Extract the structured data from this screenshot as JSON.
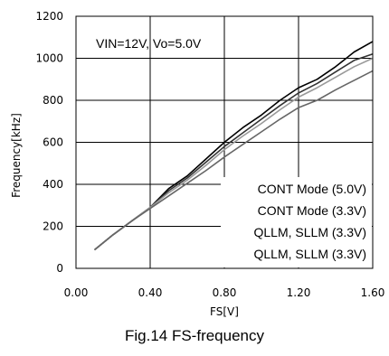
{
  "caption": "Fig.14 FS-frequency",
  "chart_data": {
    "type": "line",
    "xlabel": "FS[V]",
    "ylabel": "Frequency[kHz]",
    "xlim": [
      0.0,
      1.6
    ],
    "ylim": [
      0,
      1200
    ],
    "x_ticks": [
      "0.00",
      "0.40",
      "0.80",
      "1.20",
      "1.60"
    ],
    "y_ticks": [
      "0",
      "200",
      "400",
      "600",
      "800",
      "1000",
      "1200"
    ],
    "grid": true,
    "annotation": "VIN=12V, Vo=5.0V",
    "legend_position": "bottom-right",
    "legend_entries": [
      "CONT Mode (5.0V)",
      "CONT Mode (3.3V)",
      "QLLM, SLLM (3.3V)",
      "QLLM, SLLM (3.3V)"
    ],
    "series": [
      {
        "color": "#000000",
        "x": [
          0.1,
          0.2,
          0.3,
          0.4,
          0.5,
          0.6,
          0.7,
          0.8,
          0.9,
          1.0,
          1.1,
          1.2,
          1.3,
          1.4,
          1.5,
          1.6
        ],
        "values": [
          88,
          160,
          225,
          290,
          380,
          440,
          520,
          600,
          670,
          730,
          800,
          860,
          900,
          960,
          1030,
          1080
        ]
      },
      {
        "color": "#333333",
        "x": [
          0.1,
          0.2,
          0.3,
          0.4,
          0.5,
          0.6,
          0.7,
          0.8,
          0.9,
          1.0,
          1.1,
          1.2,
          1.3,
          1.4,
          1.5,
          1.6
        ],
        "values": [
          88,
          160,
          225,
          290,
          370,
          430,
          505,
          580,
          645,
          710,
          775,
          835,
          880,
          935,
          990,
          1020
        ]
      },
      {
        "color": "#999999",
        "x": [
          0.1,
          0.2,
          0.3,
          0.4,
          0.5,
          0.6,
          0.7,
          0.8,
          0.9,
          1.0,
          1.1,
          1.2,
          1.3,
          1.4,
          1.5,
          1.6
        ],
        "values": [
          88,
          160,
          225,
          290,
          360,
          420,
          490,
          565,
          630,
          690,
          755,
          815,
          860,
          910,
          960,
          1000
        ]
      },
      {
        "color": "#666666",
        "x": [
          0.1,
          0.2,
          0.3,
          0.4,
          0.5,
          0.6,
          0.7,
          0.8,
          0.9,
          1.0,
          1.1,
          1.2,
          1.3,
          1.4,
          1.5,
          1.6
        ],
        "values": [
          88,
          160,
          225,
          285,
          345,
          405,
          465,
          530,
          590,
          650,
          710,
          765,
          800,
          850,
          895,
          940
        ]
      }
    ]
  }
}
